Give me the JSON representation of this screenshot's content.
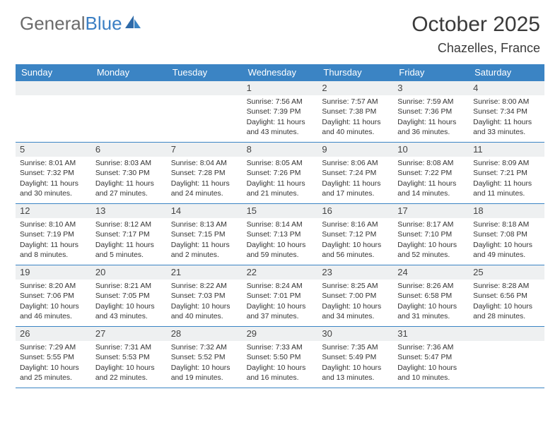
{
  "logo": {
    "text1": "General",
    "text2": "Blue"
  },
  "title": "October 2025",
  "location": "Chazelles, France",
  "weekdays": [
    "Sunday",
    "Monday",
    "Tuesday",
    "Wednesday",
    "Thursday",
    "Friday",
    "Saturday"
  ],
  "colors": {
    "header_bg": "#3b84c4",
    "header_text": "#ffffff",
    "daynum_bg": "#eef0f1",
    "border": "#3b84c4",
    "logo_gray": "#6b6b6b",
    "logo_blue": "#3b7fc4"
  },
  "weeks": [
    [
      {
        "num": "",
        "sunrise": "",
        "sunset": "",
        "daylight": ""
      },
      {
        "num": "",
        "sunrise": "",
        "sunset": "",
        "daylight": ""
      },
      {
        "num": "",
        "sunrise": "",
        "sunset": "",
        "daylight": ""
      },
      {
        "num": "1",
        "sunrise": "Sunrise: 7:56 AM",
        "sunset": "Sunset: 7:39 PM",
        "daylight": "Daylight: 11 hours and 43 minutes."
      },
      {
        "num": "2",
        "sunrise": "Sunrise: 7:57 AM",
        "sunset": "Sunset: 7:38 PM",
        "daylight": "Daylight: 11 hours and 40 minutes."
      },
      {
        "num": "3",
        "sunrise": "Sunrise: 7:59 AM",
        "sunset": "Sunset: 7:36 PM",
        "daylight": "Daylight: 11 hours and 36 minutes."
      },
      {
        "num": "4",
        "sunrise": "Sunrise: 8:00 AM",
        "sunset": "Sunset: 7:34 PM",
        "daylight": "Daylight: 11 hours and 33 minutes."
      }
    ],
    [
      {
        "num": "5",
        "sunrise": "Sunrise: 8:01 AM",
        "sunset": "Sunset: 7:32 PM",
        "daylight": "Daylight: 11 hours and 30 minutes."
      },
      {
        "num": "6",
        "sunrise": "Sunrise: 8:03 AM",
        "sunset": "Sunset: 7:30 PM",
        "daylight": "Daylight: 11 hours and 27 minutes."
      },
      {
        "num": "7",
        "sunrise": "Sunrise: 8:04 AM",
        "sunset": "Sunset: 7:28 PM",
        "daylight": "Daylight: 11 hours and 24 minutes."
      },
      {
        "num": "8",
        "sunrise": "Sunrise: 8:05 AM",
        "sunset": "Sunset: 7:26 PM",
        "daylight": "Daylight: 11 hours and 21 minutes."
      },
      {
        "num": "9",
        "sunrise": "Sunrise: 8:06 AM",
        "sunset": "Sunset: 7:24 PM",
        "daylight": "Daylight: 11 hours and 17 minutes."
      },
      {
        "num": "10",
        "sunrise": "Sunrise: 8:08 AM",
        "sunset": "Sunset: 7:22 PM",
        "daylight": "Daylight: 11 hours and 14 minutes."
      },
      {
        "num": "11",
        "sunrise": "Sunrise: 8:09 AM",
        "sunset": "Sunset: 7:21 PM",
        "daylight": "Daylight: 11 hours and 11 minutes."
      }
    ],
    [
      {
        "num": "12",
        "sunrise": "Sunrise: 8:10 AM",
        "sunset": "Sunset: 7:19 PM",
        "daylight": "Daylight: 11 hours and 8 minutes."
      },
      {
        "num": "13",
        "sunrise": "Sunrise: 8:12 AM",
        "sunset": "Sunset: 7:17 PM",
        "daylight": "Daylight: 11 hours and 5 minutes."
      },
      {
        "num": "14",
        "sunrise": "Sunrise: 8:13 AM",
        "sunset": "Sunset: 7:15 PM",
        "daylight": "Daylight: 11 hours and 2 minutes."
      },
      {
        "num": "15",
        "sunrise": "Sunrise: 8:14 AM",
        "sunset": "Sunset: 7:13 PM",
        "daylight": "Daylight: 10 hours and 59 minutes."
      },
      {
        "num": "16",
        "sunrise": "Sunrise: 8:16 AM",
        "sunset": "Sunset: 7:12 PM",
        "daylight": "Daylight: 10 hours and 56 minutes."
      },
      {
        "num": "17",
        "sunrise": "Sunrise: 8:17 AM",
        "sunset": "Sunset: 7:10 PM",
        "daylight": "Daylight: 10 hours and 52 minutes."
      },
      {
        "num": "18",
        "sunrise": "Sunrise: 8:18 AM",
        "sunset": "Sunset: 7:08 PM",
        "daylight": "Daylight: 10 hours and 49 minutes."
      }
    ],
    [
      {
        "num": "19",
        "sunrise": "Sunrise: 8:20 AM",
        "sunset": "Sunset: 7:06 PM",
        "daylight": "Daylight: 10 hours and 46 minutes."
      },
      {
        "num": "20",
        "sunrise": "Sunrise: 8:21 AM",
        "sunset": "Sunset: 7:05 PM",
        "daylight": "Daylight: 10 hours and 43 minutes."
      },
      {
        "num": "21",
        "sunrise": "Sunrise: 8:22 AM",
        "sunset": "Sunset: 7:03 PM",
        "daylight": "Daylight: 10 hours and 40 minutes."
      },
      {
        "num": "22",
        "sunrise": "Sunrise: 8:24 AM",
        "sunset": "Sunset: 7:01 PM",
        "daylight": "Daylight: 10 hours and 37 minutes."
      },
      {
        "num": "23",
        "sunrise": "Sunrise: 8:25 AM",
        "sunset": "Sunset: 7:00 PM",
        "daylight": "Daylight: 10 hours and 34 minutes."
      },
      {
        "num": "24",
        "sunrise": "Sunrise: 8:26 AM",
        "sunset": "Sunset: 6:58 PM",
        "daylight": "Daylight: 10 hours and 31 minutes."
      },
      {
        "num": "25",
        "sunrise": "Sunrise: 8:28 AM",
        "sunset": "Sunset: 6:56 PM",
        "daylight": "Daylight: 10 hours and 28 minutes."
      }
    ],
    [
      {
        "num": "26",
        "sunrise": "Sunrise: 7:29 AM",
        "sunset": "Sunset: 5:55 PM",
        "daylight": "Daylight: 10 hours and 25 minutes."
      },
      {
        "num": "27",
        "sunrise": "Sunrise: 7:31 AM",
        "sunset": "Sunset: 5:53 PM",
        "daylight": "Daylight: 10 hours and 22 minutes."
      },
      {
        "num": "28",
        "sunrise": "Sunrise: 7:32 AM",
        "sunset": "Sunset: 5:52 PM",
        "daylight": "Daylight: 10 hours and 19 minutes."
      },
      {
        "num": "29",
        "sunrise": "Sunrise: 7:33 AM",
        "sunset": "Sunset: 5:50 PM",
        "daylight": "Daylight: 10 hours and 16 minutes."
      },
      {
        "num": "30",
        "sunrise": "Sunrise: 7:35 AM",
        "sunset": "Sunset: 5:49 PM",
        "daylight": "Daylight: 10 hours and 13 minutes."
      },
      {
        "num": "31",
        "sunrise": "Sunrise: 7:36 AM",
        "sunset": "Sunset: 5:47 PM",
        "daylight": "Daylight: 10 hours and 10 minutes."
      },
      {
        "num": "",
        "sunrise": "",
        "sunset": "",
        "daylight": ""
      }
    ]
  ]
}
